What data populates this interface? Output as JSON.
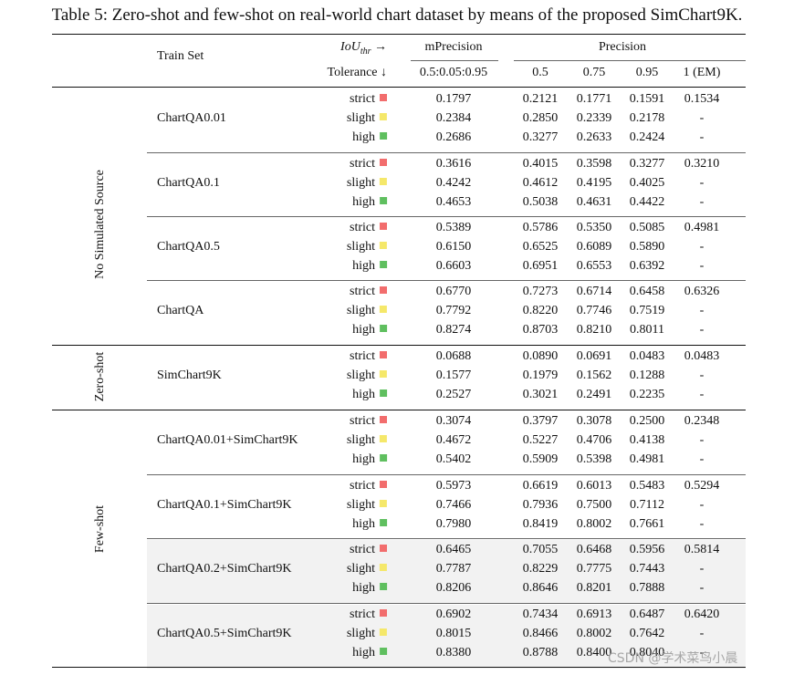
{
  "caption": "Table 5: Zero-shot and few-shot on real-world chart dataset by means of the proposed SimChart9K.",
  "headers": {
    "train_set": "Train Set",
    "iou_label": "IoU",
    "iou_sub": "thr",
    "iou_arrow": "→",
    "tolerance": "Tolerance ↓",
    "mprecision": "mPrecision",
    "mprecision_range": "0.5:0.05:0.95",
    "precision": "Precision",
    "p05": "0.5",
    "p075": "0.75",
    "p095": "0.95",
    "pem": "1 (EM)"
  },
  "groups": [
    {
      "label": "No Simulated Source"
    },
    {
      "label": "Zero-shot"
    },
    {
      "label": "Few-shot"
    }
  ],
  "tolerance_colors": {
    "strict": "#f26d6d",
    "slight": "#f5e86a",
    "high": "#5fbf5f"
  },
  "blocks": [
    {
      "train_set": "ChartQA0.01",
      "shaded": false,
      "rows": [
        {
          "tol": "strict",
          "mp": "0.1797",
          "p05": "0.2121",
          "p075": "0.1771",
          "p095": "0.1591",
          "pem": "0.1534"
        },
        {
          "tol": "slight",
          "mp": "0.2384",
          "p05": "0.2850",
          "p075": "0.2339",
          "p095": "0.2178",
          "pem": "-"
        },
        {
          "tol": "high",
          "mp": "0.2686",
          "p05": "0.3277",
          "p075": "0.2633",
          "p095": "0.2424",
          "pem": "-"
        }
      ]
    },
    {
      "train_set": "ChartQA0.1",
      "shaded": false,
      "rows": [
        {
          "tol": "strict",
          "mp": "0.3616",
          "p05": "0.4015",
          "p075": "0.3598",
          "p095": "0.3277",
          "pem": "0.3210"
        },
        {
          "tol": "slight",
          "mp": "0.4242",
          "p05": "0.4612",
          "p075": "0.4195",
          "p095": "0.4025",
          "pem": "-"
        },
        {
          "tol": "high",
          "mp": "0.4653",
          "p05": "0.5038",
          "p075": "0.4631",
          "p095": "0.4422",
          "pem": "-"
        }
      ]
    },
    {
      "train_set": "ChartQA0.5",
      "shaded": false,
      "rows": [
        {
          "tol": "strict",
          "mp": "0.5389",
          "p05": "0.5786",
          "p075": "0.5350",
          "p095": "0.5085",
          "pem": "0.4981"
        },
        {
          "tol": "slight",
          "mp": "0.6150",
          "p05": "0.6525",
          "p075": "0.6089",
          "p095": "0.5890",
          "pem": "-"
        },
        {
          "tol": "high",
          "mp": "0.6603",
          "p05": "0.6951",
          "p075": "0.6553",
          "p095": "0.6392",
          "pem": "-"
        }
      ]
    },
    {
      "train_set": "ChartQA",
      "shaded": false,
      "rows": [
        {
          "tol": "strict",
          "mp": "0.6770",
          "p05": "0.7273",
          "p075": "0.6714",
          "p095": "0.6458",
          "pem": "0.6326"
        },
        {
          "tol": "slight",
          "mp": "0.7792",
          "p05": "0.8220",
          "p075": "0.7746",
          "p095": "0.7519",
          "pem": "-"
        },
        {
          "tol": "high",
          "mp": "0.8274",
          "p05": "0.8703",
          "p075": "0.8210",
          "p095": "0.8011",
          "pem": "-"
        }
      ]
    },
    {
      "train_set": "SimChart9K",
      "shaded": false,
      "rows": [
        {
          "tol": "strict",
          "mp": "0.0688",
          "p05": "0.0890",
          "p075": "0.0691",
          "p095": "0.0483",
          "pem": "0.0483"
        },
        {
          "tol": "slight",
          "mp": "0.1577",
          "p05": "0.1979",
          "p075": "0.1562",
          "p095": "0.1288",
          "pem": "-"
        },
        {
          "tol": "high",
          "mp": "0.2527",
          "p05": "0.3021",
          "p075": "0.2491",
          "p095": "0.2235",
          "pem": "-"
        }
      ]
    },
    {
      "train_set": "ChartQA0.01+SimChart9K",
      "shaded": false,
      "rows": [
        {
          "tol": "strict",
          "mp": "0.3074",
          "p05": "0.3797",
          "p075": "0.3078",
          "p095": "0.2500",
          "pem": "0.2348"
        },
        {
          "tol": "slight",
          "mp": "0.4672",
          "p05": "0.5227",
          "p075": "0.4706",
          "p095": "0.4138",
          "pem": "-"
        },
        {
          "tol": "high",
          "mp": "0.5402",
          "p05": "0.5909",
          "p075": "0.5398",
          "p095": "0.4981",
          "pem": "-"
        }
      ]
    },
    {
      "train_set": "ChartQA0.1+SimChart9K",
      "shaded": false,
      "rows": [
        {
          "tol": "strict",
          "mp": "0.5973",
          "p05": "0.6619",
          "p075": "0.6013",
          "p095": "0.5483",
          "pem": "0.5294"
        },
        {
          "tol": "slight",
          "mp": "0.7466",
          "p05": "0.7936",
          "p075": "0.7500",
          "p095": "0.7112",
          "pem": "-"
        },
        {
          "tol": "high",
          "mp": "0.7980",
          "p05": "0.8419",
          "p075": "0.8002",
          "p095": "0.7661",
          "pem": "-"
        }
      ]
    },
    {
      "train_set": "ChartQA0.2+SimChart9K",
      "shaded": true,
      "rows": [
        {
          "tol": "strict",
          "mp": "0.6465",
          "p05": "0.7055",
          "p075": "0.6468",
          "p095": "0.5956",
          "pem": "0.5814"
        },
        {
          "tol": "slight",
          "mp": "0.7787",
          "p05": "0.8229",
          "p075": "0.7775",
          "p095": "0.7443",
          "pem": "-"
        },
        {
          "tol": "high",
          "mp": "0.8206",
          "p05": "0.8646",
          "p075": "0.8201",
          "p095": "0.7888",
          "pem": "-"
        }
      ]
    },
    {
      "train_set": "ChartQA0.5+SimChart9K",
      "shaded": true,
      "rows": [
        {
          "tol": "strict",
          "mp": "0.6902",
          "p05": "0.7434",
          "p075": "0.6913",
          "p095": "0.6487",
          "pem": "0.6420"
        },
        {
          "tol": "slight",
          "mp": "0.8015",
          "p05": "0.8466",
          "p075": "0.8002",
          "p095": "0.7642",
          "pem": "-"
        },
        {
          "tol": "high",
          "mp": "0.8380",
          "p05": "0.8788",
          "p075": "0.8400",
          "p095": "0.8040",
          "pem": "-"
        }
      ]
    }
  ],
  "watermark": "CSDN @学术菜鸟小晨"
}
